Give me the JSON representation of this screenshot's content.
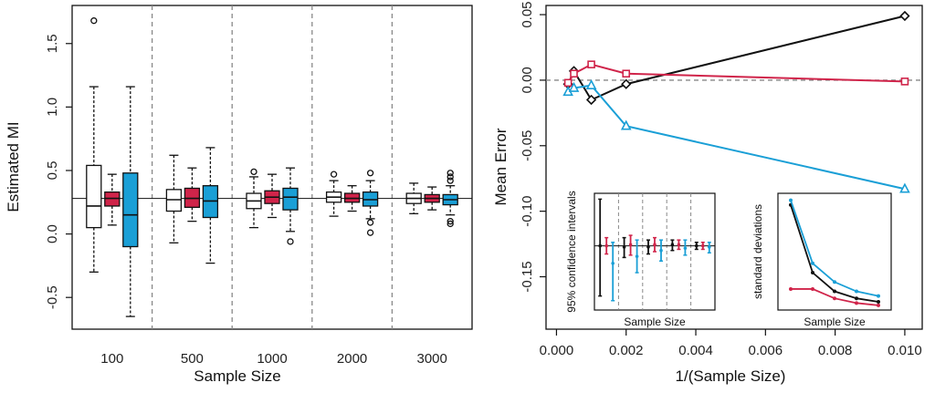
{
  "colors": {
    "white": "#ffffff",
    "red": "#d0244a",
    "blue": "#1a9fd6",
    "black": "#111111",
    "grid": "#888888"
  },
  "chart_data": [
    {
      "type": "box",
      "xlabel": "Sample Size",
      "ylabel": "Estimated MI",
      "categories": [
        "100",
        "500",
        "1000",
        "2000",
        "3000"
      ],
      "ylim": [
        -0.75,
        1.8
      ],
      "yticks": [
        -0.5,
        0.0,
        0.5,
        1.0,
        1.5
      ],
      "ytick_labels": [
        "-0.5",
        "0.0",
        "0.5",
        "1.0",
        "1.5"
      ],
      "reference_line": 0.28,
      "groups": [
        {
          "category": "100",
          "boxes": [
            {
              "color": "white",
              "min": -0.3,
              "q1": 0.05,
              "median": 0.22,
              "q3": 0.54,
              "max": 1.16,
              "outliers": [
                1.68
              ]
            },
            {
              "color": "red",
              "min": 0.07,
              "q1": 0.22,
              "median": 0.28,
              "q3": 0.33,
              "max": 0.47,
              "outliers": []
            },
            {
              "color": "blue",
              "min": -0.65,
              "q1": -0.1,
              "median": 0.15,
              "q3": 0.48,
              "max": 1.16,
              "outliers": []
            }
          ]
        },
        {
          "category": "500",
          "boxes": [
            {
              "color": "white",
              "min": -0.07,
              "q1": 0.18,
              "median": 0.27,
              "q3": 0.35,
              "max": 0.62,
              "outliers": []
            },
            {
              "color": "red",
              "min": 0.1,
              "q1": 0.21,
              "median": 0.28,
              "q3": 0.36,
              "max": 0.52,
              "outliers": []
            },
            {
              "color": "blue",
              "min": -0.23,
              "q1": 0.13,
              "median": 0.26,
              "q3": 0.38,
              "max": 0.68,
              "outliers": []
            }
          ]
        },
        {
          "category": "1000",
          "boxes": [
            {
              "color": "white",
              "min": 0.05,
              "q1": 0.2,
              "median": 0.26,
              "q3": 0.32,
              "max": 0.45,
              "outliers": [
                0.49
              ]
            },
            {
              "color": "red",
              "min": 0.13,
              "q1": 0.24,
              "median": 0.29,
              "q3": 0.34,
              "max": 0.47,
              "outliers": []
            },
            {
              "color": "blue",
              "min": 0.02,
              "q1": 0.19,
              "median": 0.29,
              "q3": 0.36,
              "max": 0.52,
              "outliers": [
                -0.06
              ]
            }
          ]
        },
        {
          "category": "2000",
          "boxes": [
            {
              "color": "white",
              "min": 0.14,
              "q1": 0.25,
              "median": 0.29,
              "q3": 0.33,
              "max": 0.42,
              "outliers": [
                0.47
              ]
            },
            {
              "color": "red",
              "min": 0.18,
              "q1": 0.25,
              "median": 0.28,
              "q3": 0.32,
              "max": 0.38,
              "outliers": []
            },
            {
              "color": "blue",
              "min": 0.12,
              "q1": 0.22,
              "median": 0.27,
              "q3": 0.33,
              "max": 0.42,
              "outliers": [
                0.48,
                0.09,
                0.01
              ]
            }
          ]
        },
        {
          "category": "3000",
          "boxes": [
            {
              "color": "white",
              "min": 0.16,
              "q1": 0.24,
              "median": 0.28,
              "q3": 0.32,
              "max": 0.4,
              "outliers": []
            },
            {
              "color": "red",
              "min": 0.19,
              "q1": 0.25,
              "median": 0.28,
              "q3": 0.31,
              "max": 0.37,
              "outliers": []
            },
            {
              "color": "blue",
              "min": 0.15,
              "q1": 0.23,
              "median": 0.27,
              "q3": 0.31,
              "max": 0.38,
              "outliers": [
                0.48,
                0.45,
                0.42,
                0.1,
                0.08
              ]
            }
          ]
        }
      ]
    },
    {
      "type": "line",
      "xlabel": "1/(Sample Size)",
      "ylabel": "Mean Error",
      "xlim": [
        -0.0003,
        0.0105
      ],
      "ylim": [
        -0.19,
        0.057
      ],
      "xticks": [
        0.0,
        0.002,
        0.004,
        0.006,
        0.008,
        0.01
      ],
      "xtick_labels": [
        "0.000",
        "0.002",
        "0.004",
        "0.006",
        "0.008",
        "0.010"
      ],
      "yticks": [
        -0.15,
        -0.1,
        -0.05,
        0.0,
        0.05
      ],
      "ytick_labels": [
        "-0.15",
        "-0.10",
        "-0.05",
        "0.00",
        "0.05"
      ],
      "reference_line": 0.0,
      "x": [
        0.000333,
        0.0005,
        0.001,
        0.002,
        0.01
      ],
      "series": [
        {
          "color": "black",
          "marker": "diamond",
          "values": [
            -0.003,
            0.007,
            -0.015,
            -0.003,
            0.049
          ]
        },
        {
          "color": "red",
          "marker": "square",
          "values": [
            -0.002,
            0.005,
            0.012,
            0.005,
            -0.001
          ]
        },
        {
          "color": "blue",
          "marker": "triangle",
          "values": [
            -0.009,
            -0.006,
            -0.004,
            -0.035,
            -0.083
          ]
        }
      ]
    },
    {
      "type": "errorbar",
      "inset": true,
      "xlabel": "Sample Size",
      "ylabel": "95% confidence intervals",
      "ylim": [
        0.0,
        1.0
      ],
      "groups": [
        {
          "bars": [
            {
              "color": "black",
              "lo": 0.12,
              "hi": 0.95,
              "mid": 0.55
            },
            {
              "color": "red",
              "lo": 0.48,
              "hi": 0.62,
              "mid": 0.55
            },
            {
              "color": "blue",
              "lo": 0.08,
              "hi": 0.58,
              "mid": 0.4
            }
          ]
        },
        {
          "bars": [
            {
              "color": "black",
              "lo": 0.45,
              "hi": 0.62,
              "mid": 0.54
            },
            {
              "color": "red",
              "lo": 0.47,
              "hi": 0.64,
              "mid": 0.56
            },
            {
              "color": "blue",
              "lo": 0.32,
              "hi": 0.6,
              "mid": 0.46
            }
          ]
        },
        {
          "bars": [
            {
              "color": "black",
              "lo": 0.48,
              "hi": 0.6,
              "mid": 0.54
            },
            {
              "color": "red",
              "lo": 0.5,
              "hi": 0.62,
              "mid": 0.56
            },
            {
              "color": "blue",
              "lo": 0.42,
              "hi": 0.6,
              "mid": 0.51
            }
          ]
        },
        {
          "bars": [
            {
              "color": "black",
              "lo": 0.51,
              "hi": 0.6,
              "mid": 0.56
            },
            {
              "color": "red",
              "lo": 0.52,
              "hi": 0.6,
              "mid": 0.56
            },
            {
              "color": "blue",
              "lo": 0.47,
              "hi": 0.6,
              "mid": 0.53
            }
          ]
        },
        {
          "bars": [
            {
              "color": "black",
              "lo": 0.52,
              "hi": 0.58,
              "mid": 0.55
            },
            {
              "color": "red",
              "lo": 0.52,
              "hi": 0.58,
              "mid": 0.55
            },
            {
              "color": "blue",
              "lo": 0.49,
              "hi": 0.58,
              "mid": 0.54
            }
          ]
        }
      ],
      "reference_line": 0.55
    },
    {
      "type": "line",
      "inset": true,
      "xlabel": "Sample Size",
      "ylabel": "standard deviations",
      "ylim": [
        0.0,
        1.0
      ],
      "x": [
        1,
        2,
        3,
        4,
        5
      ],
      "series": [
        {
          "color": "black",
          "marker": "dot",
          "values": [
            0.9,
            0.32,
            0.16,
            0.1,
            0.07
          ]
        },
        {
          "color": "red",
          "marker": "dot",
          "values": [
            0.18,
            0.18,
            0.1,
            0.06,
            0.04
          ]
        },
        {
          "color": "blue",
          "marker": "dot",
          "values": [
            0.94,
            0.4,
            0.24,
            0.16,
            0.12
          ]
        }
      ]
    }
  ]
}
